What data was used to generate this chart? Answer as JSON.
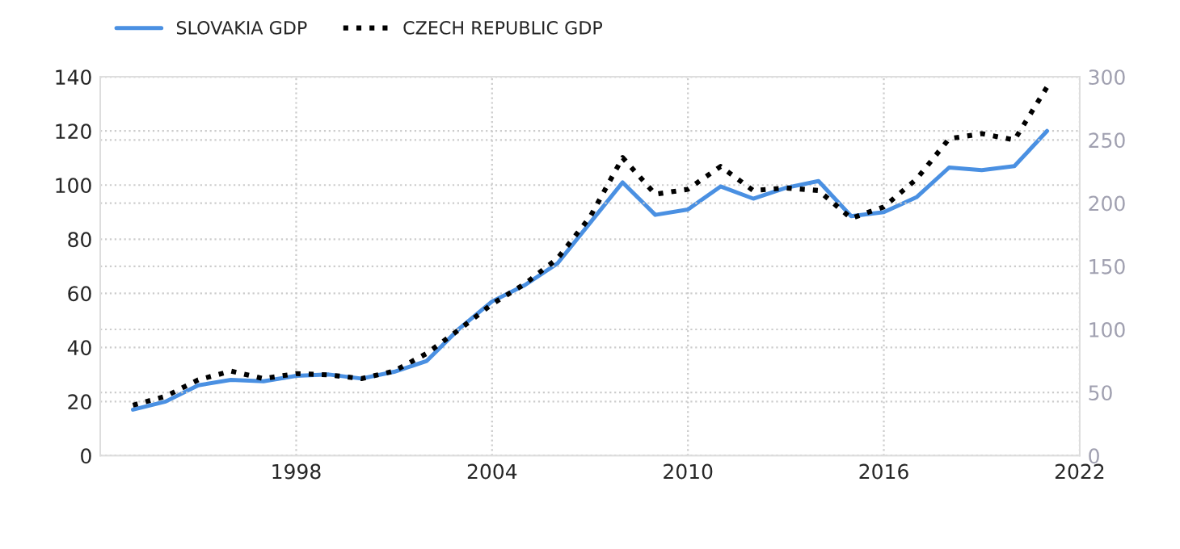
{
  "chart_data": {
    "type": "line",
    "x": [
      1993,
      1994,
      1995,
      1996,
      1997,
      1998,
      1999,
      2000,
      2001,
      2002,
      2003,
      2004,
      2005,
      2006,
      2007,
      2008,
      2009,
      2010,
      2011,
      2012,
      2013,
      2014,
      2015,
      2016,
      2017,
      2018,
      2019,
      2020,
      2021
    ],
    "series": [
      {
        "name": "SLOVAKIA GDP",
        "color": "#4a90e2",
        "line_style": "solid",
        "values": [
          17,
          20,
          26,
          28,
          27.5,
          29.5,
          30,
          28.5,
          31,
          35,
          47,
          57,
          63,
          71,
          86,
          101,
          89,
          91,
          99.5,
          95,
          99,
          101.5,
          88.5,
          90,
          95.5,
          106.5,
          105.5,
          107,
          120
        ]
      },
      {
        "name": "CZECH REPUBLIC GDP",
        "color": "#000000",
        "line_style": "dotted",
        "axis": "y2",
        "values": [
          40,
          47,
          60,
          67,
          61,
          65,
          64,
          61,
          67,
          81,
          100,
          120,
          136,
          156,
          189,
          236,
          207,
          211,
          229,
          210,
          212,
          210,
          188,
          197,
          219,
          251,
          255,
          250,
          292
        ]
      }
    ],
    "xlim": [
      1992,
      2022
    ],
    "xticks": [
      1998,
      2004,
      2010,
      2016,
      2022
    ],
    "ylim": [
      0,
      140
    ],
    "yticks": [
      0,
      20,
      40,
      60,
      80,
      100,
      120,
      140
    ],
    "y2lim": [
      0,
      300
    ],
    "y2ticks": [
      0,
      50,
      100,
      150,
      200,
      250,
      300
    ],
    "grid": true,
    "legend": "top left"
  }
}
